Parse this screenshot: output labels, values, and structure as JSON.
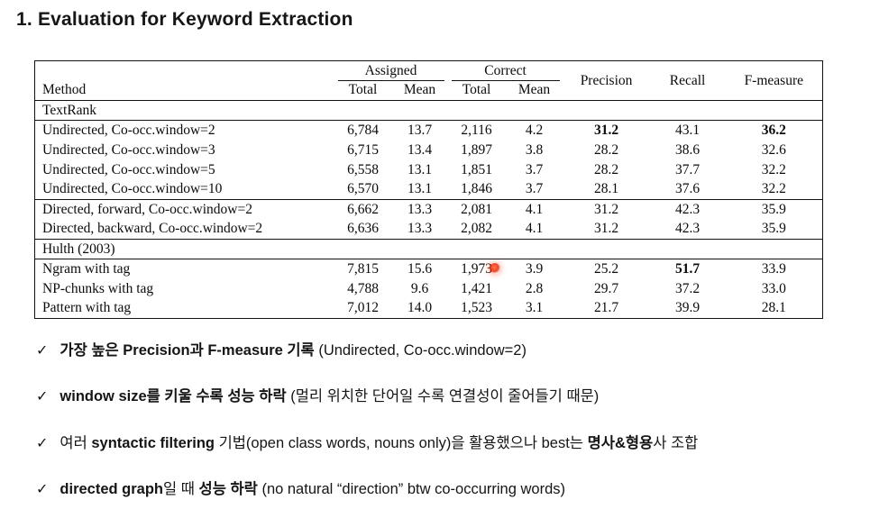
{
  "title": "1. Evaluation for Keyword Extraction",
  "table": {
    "group_headers": [
      {
        "label": "Assigned"
      },
      {
        "label": "Correct"
      }
    ],
    "column_headers": [
      "Method",
      "Total",
      "Mean",
      "Total",
      "Mean",
      "Precision",
      "Recall",
      "F-measure"
    ],
    "sections": [
      {
        "name": "TextRank",
        "rows": [
          {
            "method": "Undirected, Co-occ.window=2",
            "values": [
              "6,784",
              "13.7",
              "2,116",
              "4.2",
              "31.2",
              "43.1",
              "36.2"
            ],
            "bold_cols": [
              4,
              6
            ],
            "rule_above": false
          },
          {
            "method": "Undirected, Co-occ.window=3",
            "values": [
              "6,715",
              "13.4",
              "1,897",
              "3.8",
              "28.2",
              "38.6",
              "32.6"
            ],
            "bold_cols": [],
            "rule_above": false
          },
          {
            "method": "Undirected, Co-occ.window=5",
            "values": [
              "6,558",
              "13.1",
              "1,851",
              "3.7",
              "28.2",
              "37.7",
              "32.2"
            ],
            "bold_cols": [],
            "rule_above": false
          },
          {
            "method": "Undirected, Co-occ.window=10",
            "values": [
              "6,570",
              "13.1",
              "1,846",
              "3.7",
              "28.1",
              "37.6",
              "32.2"
            ],
            "bold_cols": [],
            "rule_above": false
          },
          {
            "method": "Directed, forward, Co-occ.window=2",
            "values": [
              "6,662",
              "13.3",
              "2,081",
              "4.1",
              "31.2",
              "42.3",
              "35.9"
            ],
            "bold_cols": [],
            "rule_above": true
          },
          {
            "method": "Directed, backward, Co-occ.window=2",
            "values": [
              "6,636",
              "13.3",
              "2,082",
              "4.1",
              "31.2",
              "42.3",
              "35.9"
            ],
            "bold_cols": [],
            "rule_above": false
          }
        ]
      },
      {
        "name": "Hulth (2003)",
        "rows": [
          {
            "method": "Ngram with tag",
            "values": [
              "7,815",
              "15.6",
              "1,973",
              "3.9",
              "25.2",
              "51.7",
              "33.9"
            ],
            "bold_cols": [
              5
            ],
            "rule_above": false
          },
          {
            "method": "NP-chunks with tag",
            "values": [
              "4,788",
              "9.6",
              "1,421",
              "2.8",
              "29.7",
              "37.2",
              "33.0"
            ],
            "bold_cols": [],
            "rule_above": false
          },
          {
            "method": "Pattern with tag",
            "values": [
              "7,012",
              "14.0",
              "1,523",
              "3.1",
              "21.7",
              "39.9",
              "28.1"
            ],
            "bold_cols": [],
            "rule_above": false
          }
        ]
      }
    ]
  },
  "bullet_marker": "✓",
  "bullets": [
    {
      "segments": [
        {
          "text": "가장 높은 Precision과 F-measure 기록",
          "bold": true
        },
        {
          "text": " (Undirected, Co-occ.window=2)",
          "bold": false
        }
      ]
    },
    {
      "segments": [
        {
          "text": "window size를 키울 수록 성능 하락",
          "bold": true
        },
        {
          "text": " (멀리 위치한 단어일 수록 연결성이 줄어들기 때문)",
          "bold": false
        }
      ]
    },
    {
      "segments": [
        {
          "text": "여러 ",
          "bold": false
        },
        {
          "text": "syntactic filtering",
          "bold": true
        },
        {
          "text": " 기법(open class words, nouns only)을 활용했으나 best는 ",
          "bold": false
        },
        {
          "text": "명사&형용",
          "bold": true
        },
        {
          "text": "사 조합",
          "bold": false
        }
      ]
    },
    {
      "segments": [
        {
          "text": "directed graph",
          "bold": true
        },
        {
          "text": "일 때 ",
          "bold": false
        },
        {
          "text": "성능 하락",
          "bold": true
        },
        {
          "text": " (no natural “direction” btw co-occurring words)",
          "bold": false
        }
      ]
    }
  ],
  "laser_pointer": {
    "color": "#ee2200"
  }
}
